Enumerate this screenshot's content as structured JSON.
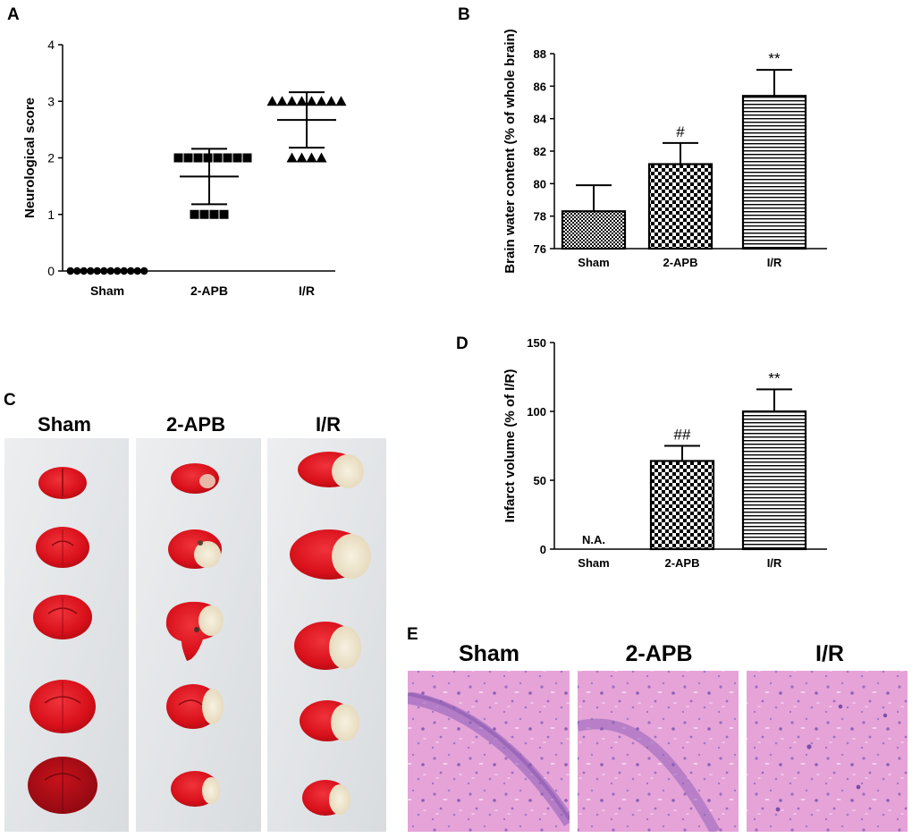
{
  "panels": {
    "A": {
      "letter": "A"
    },
    "B": {
      "letter": "B"
    },
    "C": {
      "letter": "C",
      "labels": [
        "Sham",
        "2-APB",
        "I/R"
      ]
    },
    "D": {
      "letter": "D"
    },
    "E": {
      "letter": "E",
      "labels": [
        "Sham",
        "2-APB",
        "I/R"
      ]
    }
  },
  "chart_data": [
    {
      "id": "A",
      "type": "scatter",
      "title": "",
      "xlabel": "",
      "ylabel": "Neurological score",
      "categories": [
        "Sham",
        "2-APB",
        "I/R"
      ],
      "ylim": [
        0,
        4
      ],
      "yticks": [
        0,
        1,
        2,
        3,
        4
      ],
      "markers": [
        "circle",
        "square",
        "triangle"
      ],
      "series": [
        {
          "name": "Sham",
          "points": [
            0,
            0,
            0,
            0,
            0,
            0,
            0,
            0,
            0,
            0,
            0,
            0
          ],
          "mean": 0,
          "sd": 0
        },
        {
          "name": "2-APB",
          "points": [
            2,
            2,
            2,
            2,
            2,
            2,
            2,
            2,
            1,
            1,
            1,
            1
          ],
          "mean": 1.67,
          "sd": 0.49
        },
        {
          "name": "I/R",
          "points": [
            3,
            3,
            3,
            3,
            3,
            3,
            3,
            3,
            2,
            2,
            2,
            2
          ],
          "mean": 2.67,
          "sd": 0.49
        }
      ]
    },
    {
      "id": "B",
      "type": "bar",
      "title": "",
      "xlabel": "",
      "ylabel": "Brain water content (% of whole brain)",
      "categories": [
        "Sham",
        "2-APB",
        "I/R"
      ],
      "values": [
        78.3,
        81.2,
        85.4
      ],
      "errors": [
        1.6,
        1.3,
        1.6
      ],
      "annotations": [
        "",
        "#",
        "**"
      ],
      "patterns": [
        "fine-check",
        "check",
        "hstripe"
      ],
      "ylim": [
        76,
        88
      ],
      "yticks": [
        76,
        78,
        80,
        82,
        84,
        86,
        88
      ]
    },
    {
      "id": "D",
      "type": "bar",
      "title": "",
      "xlabel": "",
      "ylabel": "Infarct volume (% of I/R)",
      "categories": [
        "Sham",
        "2-APB",
        "I/R"
      ],
      "values": [
        0,
        64,
        100
      ],
      "errors": [
        0,
        11,
        16
      ],
      "annotations": [
        "N.A.",
        "##",
        "**"
      ],
      "patterns": [
        "none",
        "check",
        "hstripe"
      ],
      "ylim": [
        0,
        150
      ],
      "yticks": [
        0,
        50,
        100,
        150
      ]
    }
  ],
  "colors": {
    "axis": "#000000",
    "tissue_red": "#d8101a",
    "tissue_dark": "#a80a12",
    "tissue_pale": "#efe6cf",
    "photo_bg": "#e2e4e6",
    "he_pink": "#e7a6da",
    "he_purple": "#8c62b8"
  }
}
